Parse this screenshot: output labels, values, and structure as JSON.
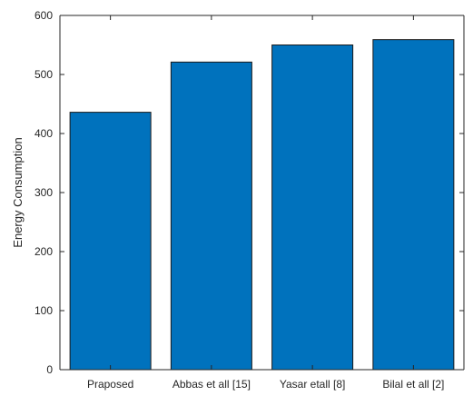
{
  "chart_data": {
    "type": "bar",
    "categories": [
      "Praposed",
      "Abbas et all [15]",
      "Yasar etall [8]",
      "Bilal et all [2]"
    ],
    "values": [
      436,
      521,
      550,
      559
    ],
    "title": "",
    "xlabel": "",
    "ylabel": "Energy Consumption",
    "ylim": [
      0,
      600
    ],
    "yticks": [
      0,
      100,
      200,
      300,
      400,
      500,
      600
    ],
    "grid": false,
    "bar_color": "#0072BD"
  }
}
